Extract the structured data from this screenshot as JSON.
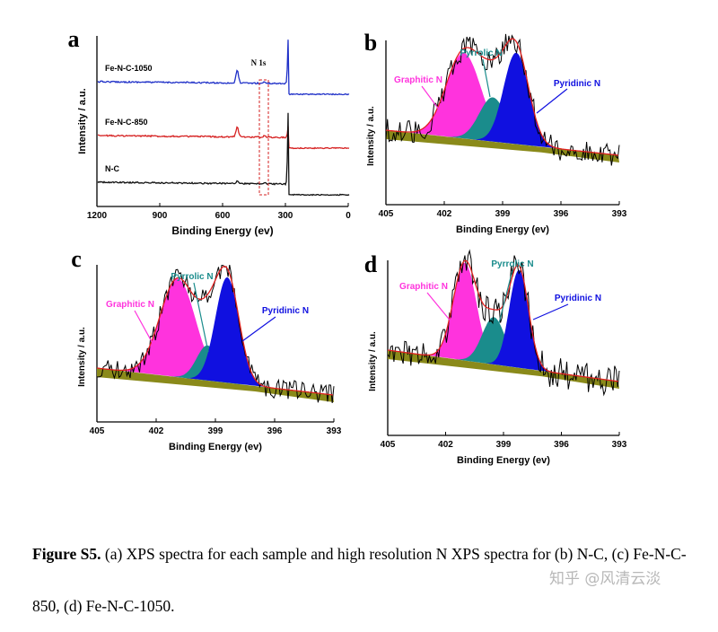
{
  "caption": {
    "label": "Figure S5.",
    "text": " (a) XPS spectra for each sample and high resolution N XPS spectra for (b) N-C, (c) Fe-N-C-850, (d) Fe-N-C-1050."
  },
  "watermark": "知乎 @风清云淡",
  "colors": {
    "blue": "#1f30c8",
    "red": "#d62020",
    "black": "#111111",
    "graphitic": "#ff33dd",
    "pyrrolic": "#1a8c8c",
    "pyridinic": "#1010e0",
    "background": "#8a8a1a",
    "envelope": "#e02020"
  },
  "chart_data": [
    {
      "panel": "a",
      "type": "line",
      "title": "",
      "xlabel": "Binding Energy (ev)",
      "ylabel": "Intensity / a.u.",
      "xlim": [
        1200,
        0
      ],
      "xticks": [
        "1200",
        "900",
        "600",
        "300",
        "0"
      ],
      "annotation": "N 1s",
      "series": [
        {
          "name": "Fe-N-C-1050",
          "color": "#1f30c8",
          "baseline": 2,
          "peaks": [
            {
              "x": 530,
              "h": 0.5
            },
            {
              "x": 285,
              "h": 2.0
            },
            {
              "x": 400,
              "h": 0.05
            }
          ]
        },
        {
          "name": "Fe-N-C-850",
          "color": "#d62020",
          "baseline": 1,
          "peaks": [
            {
              "x": 530,
              "h": 0.4
            },
            {
              "x": 285,
              "h": 0.5
            },
            {
              "x": 400,
              "h": 0.05
            }
          ]
        },
        {
          "name": "N-C",
          "color": "#111111",
          "baseline": 0,
          "peaks": [
            {
              "x": 530,
              "h": 0.1
            },
            {
              "x": 285,
              "h": 3.3
            },
            {
              "x": 400,
              "h": 0.05
            }
          ]
        }
      ]
    },
    {
      "panel": "b",
      "type": "area",
      "xlabel": "Binding Energy (ev)",
      "ylabel": "Intensity / a.u.",
      "xlim": [
        405,
        393
      ],
      "xticks": [
        "405",
        "402",
        "399",
        "396",
        "393"
      ],
      "components": [
        {
          "name": "Graphitic N",
          "center": 401.0,
          "height": 0.58,
          "width": 0.9
        },
        {
          "name": "Pyrrolic N",
          "center": 399.5,
          "height": 0.3,
          "width": 0.7
        },
        {
          "name": "Pyridinic N",
          "center": 398.3,
          "height": 0.62,
          "width": 0.65
        }
      ]
    },
    {
      "panel": "c",
      "type": "area",
      "xlabel": "Binding Energy (ev)",
      "ylabel": "Intensity / a.u.",
      "xlim": [
        405,
        393
      ],
      "xticks": [
        "405",
        "402",
        "399",
        "396",
        "393"
      ],
      "components": [
        {
          "name": "Graphitic N",
          "center": 400.9,
          "height": 0.7,
          "width": 0.9
        },
        {
          "name": "Pyrrolic N",
          "center": 399.4,
          "height": 0.25,
          "width": 0.55
        },
        {
          "name": "Pyridinic N",
          "center": 398.4,
          "height": 0.75,
          "width": 0.6
        }
      ]
    },
    {
      "panel": "d",
      "type": "area",
      "xlabel": "Binding Energy (ev)",
      "ylabel": "Intensity / a.u.",
      "xlim": [
        405,
        393
      ],
      "xticks": [
        "405",
        "402",
        "399",
        "396",
        "393"
      ],
      "components": [
        {
          "name": "Graphitic N",
          "center": 401.0,
          "height": 0.62,
          "width": 0.6
        },
        {
          "name": "Pyrrolic N",
          "center": 399.5,
          "height": 0.3,
          "width": 0.6
        },
        {
          "name": "Pyridinic N",
          "center": 398.2,
          "height": 0.62,
          "width": 0.5
        }
      ]
    }
  ]
}
